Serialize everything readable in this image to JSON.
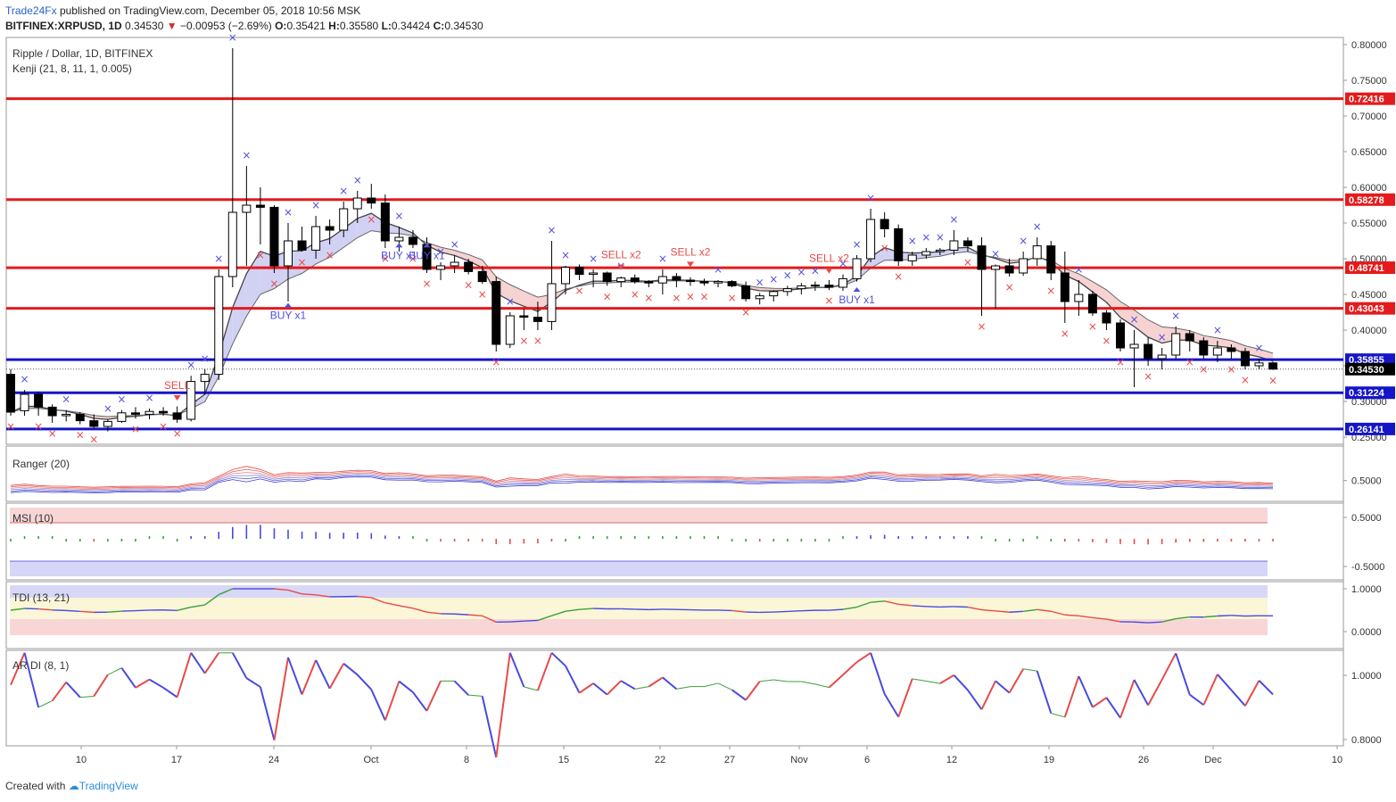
{
  "header": {
    "publisher": "Trade24Fx",
    "published_text": "published on TradingView.com, December 05, 2018 10:56 MSK",
    "symbol_line": "BITFINEX:XRPUSD, 1D",
    "last": "0.34530",
    "change": "−0.00953 (−2.69%)",
    "o_label": "O:",
    "o": "0.35421",
    "h_label": "H:",
    "h": "0.35580",
    "l_label": "L:",
    "l": "0.34424",
    "c_label": "C:",
    "c": "0.34530"
  },
  "pane_titles": {
    "main": "Ripple / Dollar, 1D, BITFINEX",
    "kenji": "Kenji (21, 8, 11, 1, 0.005)",
    "ranger": "Ranger (20)",
    "msi": "MSI (10)",
    "tdi": "TDI (13, 21)",
    "ardi": "AR DI (8, 1)"
  },
  "footer": {
    "created_with": "Created with",
    "brand": "TradingView"
  },
  "colors": {
    "up_candle": "#ffffff",
    "down_candle": "#000000",
    "resistance": "#e41a1c",
    "support": "#1515c8",
    "buy_marker": "#5050e0",
    "sell_marker": "#e84a4a",
    "cloud_bull": "#c9c9f2",
    "cloud_bear": "#f4caca"
  },
  "chart_data": [
    {
      "type": "candlestick",
      "title": "Ripple / Dollar, 1D, BITFINEX",
      "ylim": [
        0.24,
        0.81
      ],
      "y_ticks": [
        "0.80000",
        "0.75000",
        "0.70000",
        "0.65000",
        "0.60000",
        "0.55000",
        "0.50000",
        "0.45000",
        "0.40000",
        "0.35000",
        "0.30000",
        "0.25000"
      ],
      "x_ticks": [
        "10",
        "17",
        "24",
        "Oct",
        "8",
        "15",
        "22",
        "27",
        "Nov",
        "6",
        "12",
        "19",
        "26",
        "Dec",
        "10"
      ],
      "last_price": "0.34530",
      "levels": [
        {
          "value": 0.72416,
          "label": "0.72416",
          "role": "resistance"
        },
        {
          "value": 0.58278,
          "label": "0.58278",
          "role": "resistance"
        },
        {
          "value": 0.48741,
          "label": "0.48741",
          "role": "resistance"
        },
        {
          "value": 0.43043,
          "label": "0.43043",
          "role": "resistance"
        },
        {
          "value": 0.35855,
          "label": "0.35855",
          "role": "support"
        },
        {
          "value": 0.31224,
          "label": "0.31224",
          "role": "support"
        },
        {
          "value": 0.26141,
          "label": "0.26141",
          "role": "support"
        }
      ],
      "candles": [
        [
          0.338,
          0.345,
          0.28,
          0.285
        ],
        [
          0.287,
          0.316,
          0.28,
          0.31
        ],
        [
          0.31,
          0.314,
          0.28,
          0.292
        ],
        [
          0.292,
          0.296,
          0.27,
          0.28
        ],
        [
          0.28,
          0.288,
          0.272,
          0.282
        ],
        [
          0.282,
          0.285,
          0.268,
          0.273
        ],
        [
          0.273,
          0.282,
          0.262,
          0.265
        ],
        [
          0.265,
          0.275,
          0.258,
          0.272
        ],
        [
          0.272,
          0.288,
          0.27,
          0.284
        ],
        [
          0.284,
          0.292,
          0.276,
          0.282
        ],
        [
          0.282,
          0.29,
          0.275,
          0.286
        ],
        [
          0.286,
          0.292,
          0.28,
          0.284
        ],
        [
          0.284,
          0.293,
          0.27,
          0.275
        ],
        [
          0.275,
          0.336,
          0.272,
          0.328
        ],
        [
          0.328,
          0.345,
          0.31,
          0.338
        ],
        [
          0.338,
          0.485,
          0.33,
          0.475
        ],
        [
          0.475,
          0.795,
          0.46,
          0.565
        ],
        [
          0.565,
          0.63,
          0.49,
          0.575
        ],
        [
          0.575,
          0.6,
          0.52,
          0.572
        ],
        [
          0.572,
          0.575,
          0.48,
          0.49
        ],
        [
          0.49,
          0.55,
          0.44,
          0.525
        ],
        [
          0.525,
          0.545,
          0.51,
          0.512
        ],
        [
          0.512,
          0.56,
          0.5,
          0.545
        ],
        [
          0.545,
          0.555,
          0.52,
          0.54
        ],
        [
          0.54,
          0.58,
          0.53,
          0.57
        ],
        [
          0.57,
          0.595,
          0.55,
          0.585
        ],
        [
          0.585,
          0.605,
          0.57,
          0.578
        ],
        [
          0.578,
          0.59,
          0.515,
          0.525
        ],
        [
          0.525,
          0.545,
          0.51,
          0.53
        ],
        [
          0.53,
          0.54,
          0.515,
          0.52
        ],
        [
          0.52,
          0.53,
          0.48,
          0.485
        ],
        [
          0.485,
          0.495,
          0.47,
          0.49
        ],
        [
          0.49,
          0.505,
          0.48,
          0.495
        ],
        [
          0.495,
          0.5,
          0.478,
          0.482
        ],
        [
          0.482,
          0.49,
          0.465,
          0.468
        ],
        [
          0.468,
          0.475,
          0.37,
          0.38
        ],
        [
          0.38,
          0.425,
          0.375,
          0.42
        ],
        [
          0.42,
          0.43,
          0.4,
          0.418
        ],
        [
          0.418,
          0.44,
          0.4,
          0.412
        ],
        [
          0.412,
          0.525,
          0.4,
          0.465
        ],
        [
          0.465,
          0.49,
          0.45,
          0.488
        ],
        [
          0.488,
          0.492,
          0.47,
          0.478
        ],
        [
          0.478,
          0.485,
          0.46,
          0.48
        ],
        [
          0.48,
          0.482,
          0.462,
          0.468
        ],
        [
          0.468,
          0.475,
          0.46,
          0.473
        ],
        [
          0.473,
          0.478,
          0.465,
          0.468
        ],
        [
          0.468,
          0.47,
          0.46,
          0.466
        ],
        [
          0.466,
          0.485,
          0.45,
          0.475
        ],
        [
          0.475,
          0.48,
          0.46,
          0.47
        ],
        [
          0.47,
          0.474,
          0.462,
          0.468
        ],
        [
          0.468,
          0.472,
          0.462,
          0.466
        ],
        [
          0.466,
          0.47,
          0.46,
          0.468
        ],
        [
          0.468,
          0.47,
          0.46,
          0.462
        ],
        [
          0.462,
          0.468,
          0.44,
          0.444
        ],
        [
          0.444,
          0.452,
          0.436,
          0.448
        ],
        [
          0.448,
          0.456,
          0.44,
          0.454
        ],
        [
          0.454,
          0.462,
          0.448,
          0.458
        ],
        [
          0.458,
          0.466,
          0.45,
          0.462
        ],
        [
          0.462,
          0.468,
          0.455,
          0.463
        ],
        [
          0.463,
          0.47,
          0.456,
          0.46
        ],
        [
          0.46,
          0.478,
          0.455,
          0.472
        ],
        [
          0.472,
          0.505,
          0.468,
          0.5
        ],
        [
          0.5,
          0.57,
          0.495,
          0.555
        ],
        [
          0.555,
          0.565,
          0.53,
          0.542
        ],
        [
          0.542,
          0.548,
          0.49,
          0.497
        ],
        [
          0.497,
          0.51,
          0.49,
          0.505
        ],
        [
          0.505,
          0.515,
          0.5,
          0.51
        ],
        [
          0.51,
          0.515,
          0.505,
          0.512
        ],
        [
          0.512,
          0.54,
          0.505,
          0.525
        ],
        [
          0.525,
          0.53,
          0.51,
          0.518
        ],
        [
          0.518,
          0.53,
          0.42,
          0.485
        ],
        [
          0.485,
          0.492,
          0.43,
          0.49
        ],
        [
          0.49,
          0.5,
          0.475,
          0.48
        ],
        [
          0.48,
          0.51,
          0.476,
          0.5
        ],
        [
          0.5,
          0.53,
          0.49,
          0.518
        ],
        [
          0.518,
          0.525,
          0.47,
          0.48
        ],
        [
          0.48,
          0.51,
          0.41,
          0.44
        ],
        [
          0.44,
          0.47,
          0.42,
          0.45
        ],
        [
          0.45,
          0.455,
          0.42,
          0.424
        ],
        [
          0.424,
          0.428,
          0.4,
          0.41
        ],
        [
          0.41,
          0.415,
          0.37,
          0.375
        ],
        [
          0.375,
          0.4,
          0.32,
          0.38
        ],
        [
          0.38,
          0.39,
          0.35,
          0.36
        ],
        [
          0.36,
          0.375,
          0.345,
          0.365
        ],
        [
          0.365,
          0.405,
          0.36,
          0.395
        ],
        [
          0.395,
          0.4,
          0.37,
          0.385
        ],
        [
          0.385,
          0.39,
          0.36,
          0.365
        ],
        [
          0.365,
          0.385,
          0.355,
          0.375
        ],
        [
          0.375,
          0.38,
          0.36,
          0.37
        ],
        [
          0.37,
          0.375,
          0.345,
          0.35
        ],
        [
          0.35,
          0.36,
          0.345,
          0.354
        ],
        [
          0.354,
          0.3558,
          0.34424,
          0.3453
        ]
      ],
      "annotations": [
        {
          "text": "SELL",
          "candle": 12,
          "value": 0.305,
          "kind": "sell"
        },
        {
          "text": "BUY x1",
          "candle": 20,
          "value": 0.428,
          "kind": "buy"
        },
        {
          "text": "BUY x1",
          "candle": 28,
          "value": 0.512,
          "kind": "buy"
        },
        {
          "text": "BUY x1",
          "candle": 30,
          "value": 0.512,
          "kind": "buy"
        },
        {
          "text": "SELL x2",
          "candle": 44,
          "value": 0.488,
          "kind": "sell"
        },
        {
          "text": "SELL x2",
          "candle": 49,
          "value": 0.492,
          "kind": "sell"
        },
        {
          "text": "SELL x2",
          "candle": 59,
          "value": 0.483,
          "kind": "sell"
        },
        {
          "text": "BUY x1",
          "candle": 61,
          "value": 0.45,
          "kind": "buy"
        }
      ]
    },
    {
      "type": "line",
      "title": "Ranger (20)",
      "y_ticks": [
        "0.5000"
      ]
    },
    {
      "type": "bar",
      "title": "MSI (10)",
      "y_ticks": [
        "0.5000",
        "-0.5000"
      ]
    },
    {
      "type": "line",
      "title": "TDI (13, 21)",
      "y_ticks": [
        "1.0000",
        "0.0000"
      ]
    },
    {
      "type": "line",
      "title": "AR DI (8, 1)",
      "y_ticks": [
        "1.0000",
        "0.8000"
      ]
    }
  ]
}
